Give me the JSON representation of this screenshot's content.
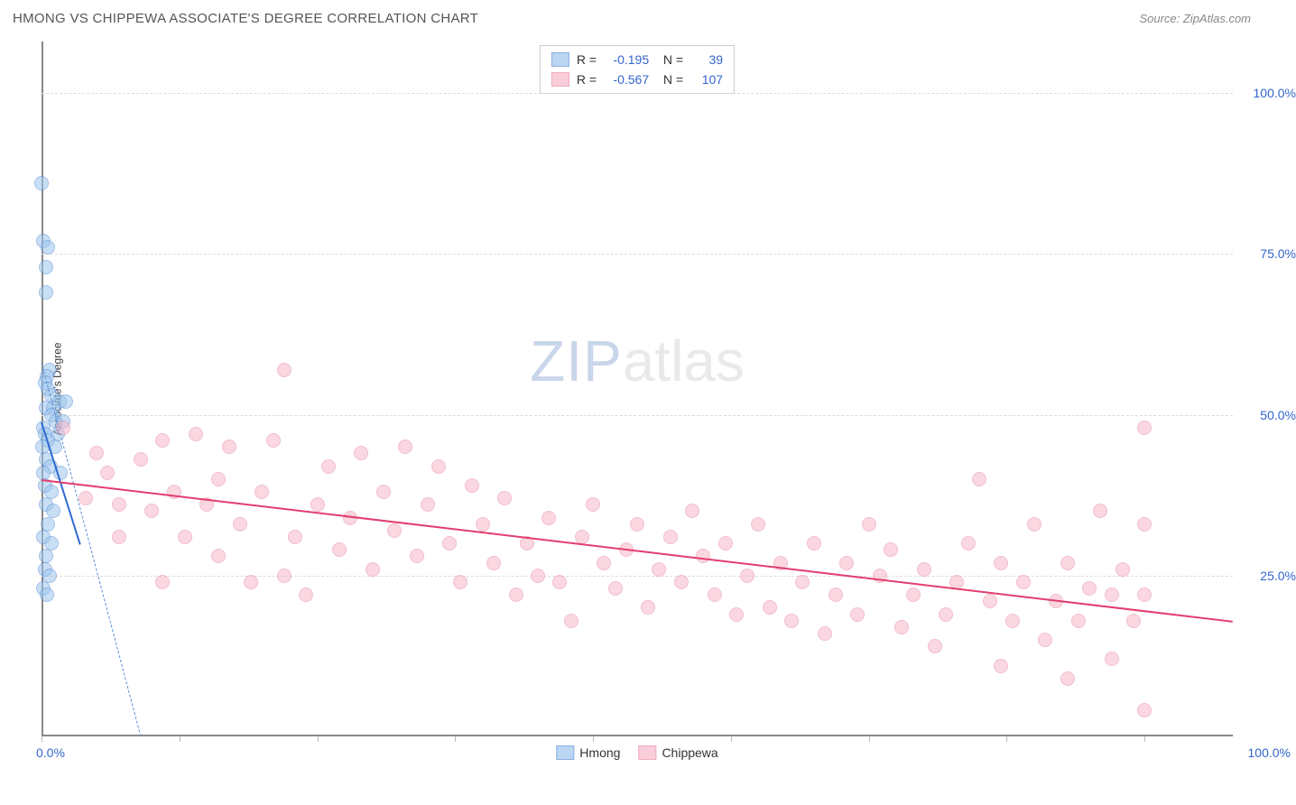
{
  "title": "HMONG VS CHIPPEWA ASSOCIATE'S DEGREE CORRELATION CHART",
  "source": "Source: ZipAtlas.com",
  "watermark": {
    "a": "ZIP",
    "b": "atlas"
  },
  "chart": {
    "type": "scatter",
    "ylabel": "Associate's Degree",
    "xlim": [
      0,
      108
    ],
    "ylim": [
      0,
      108
    ],
    "xticks": [
      0,
      12.5,
      25,
      37.5,
      50,
      62.5,
      75,
      87.5,
      100
    ],
    "yticks": [
      25,
      50,
      75,
      100
    ],
    "ytick_labels": [
      "25.0%",
      "50.0%",
      "75.0%",
      "100.0%"
    ],
    "xmin_label": "0.0%",
    "xmax_label": "100.0%",
    "grid_color": "#dcdcdc",
    "axis_color": "#888888",
    "background_color": "#ffffff",
    "series": [
      {
        "name": "Hmong",
        "fill": "#9ec6ed",
        "fill_opacity": 0.55,
        "stroke": "#5b8fd6",
        "trend_color": "#2e6ad1",
        "dash_color": "#5b8fd6",
        "R": "-0.195",
        "N": "39",
        "trend": {
          "x1": 0,
          "y1": 49,
          "x2": 3.5,
          "y2": 30
        },
        "dash_ext": {
          "x1": 0,
          "y1": 58,
          "x2": 9,
          "y2": 0
        },
        "points": [
          [
            0,
            86
          ],
          [
            0.2,
            77
          ],
          [
            0.6,
            76
          ],
          [
            0.4,
            73
          ],
          [
            0.4,
            69
          ],
          [
            0.7,
            57
          ],
          [
            0.5,
            56
          ],
          [
            0.3,
            55
          ],
          [
            0.6,
            54
          ],
          [
            0.9,
            53
          ],
          [
            1.6,
            52
          ],
          [
            2.2,
            52
          ],
          [
            0.4,
            51
          ],
          [
            1.1,
            51
          ],
          [
            0.9,
            50
          ],
          [
            0.2,
            48
          ],
          [
            1.3,
            49
          ],
          [
            2.0,
            49
          ],
          [
            0.3,
            47
          ],
          [
            1.5,
            47
          ],
          [
            0.6,
            46
          ],
          [
            0.1,
            45
          ],
          [
            1.2,
            45
          ],
          [
            0.4,
            43
          ],
          [
            0.8,
            42
          ],
          [
            0.2,
            41
          ],
          [
            1.7,
            41
          ],
          [
            0.3,
            39
          ],
          [
            0.9,
            38
          ],
          [
            0.4,
            36
          ],
          [
            1.1,
            35
          ],
          [
            0.6,
            33
          ],
          [
            0.2,
            31
          ],
          [
            0.9,
            30
          ],
          [
            0.4,
            28
          ],
          [
            0.3,
            26
          ],
          [
            0.7,
            25
          ],
          [
            0.2,
            23
          ],
          [
            0.5,
            22
          ]
        ]
      },
      {
        "name": "Chippewa",
        "fill": "#f7b8ca",
        "fill_opacity": 0.55,
        "stroke": "#e88aa6",
        "trend_color": "#e23d6d",
        "dash_color": "#e88aa6",
        "R": "-0.567",
        "N": "107",
        "trend": {
          "x1": 0,
          "y1": 40,
          "x2": 108,
          "y2": 18
        },
        "points": [
          [
            2,
            48
          ],
          [
            4,
            37
          ],
          [
            5,
            44
          ],
          [
            6,
            41
          ],
          [
            7,
            36
          ],
          [
            7,
            31
          ],
          [
            9,
            43
          ],
          [
            10,
            35
          ],
          [
            11,
            46
          ],
          [
            11,
            24
          ],
          [
            12,
            38
          ],
          [
            13,
            31
          ],
          [
            14,
            47
          ],
          [
            15,
            36
          ],
          [
            16,
            40
          ],
          [
            16,
            28
          ],
          [
            17,
            45
          ],
          [
            18,
            33
          ],
          [
            19,
            24
          ],
          [
            20,
            38
          ],
          [
            21,
            46
          ],
          [
            22,
            57
          ],
          [
            22,
            25
          ],
          [
            23,
            31
          ],
          [
            24,
            22
          ],
          [
            25,
            36
          ],
          [
            26,
            42
          ],
          [
            27,
            29
          ],
          [
            28,
            34
          ],
          [
            29,
            44
          ],
          [
            30,
            26
          ],
          [
            31,
            38
          ],
          [
            32,
            32
          ],
          [
            33,
            45
          ],
          [
            34,
            28
          ],
          [
            35,
            36
          ],
          [
            36,
            42
          ],
          [
            37,
            30
          ],
          [
            38,
            24
          ],
          [
            39,
            39
          ],
          [
            40,
            33
          ],
          [
            41,
            27
          ],
          [
            42,
            37
          ],
          [
            43,
            22
          ],
          [
            44,
            30
          ],
          [
            45,
            25
          ],
          [
            46,
            34
          ],
          [
            47,
            24
          ],
          [
            48,
            18
          ],
          [
            49,
            31
          ],
          [
            50,
            36
          ],
          [
            51,
            27
          ],
          [
            52,
            23
          ],
          [
            53,
            29
          ],
          [
            54,
            33
          ],
          [
            55,
            20
          ],
          [
            56,
            26
          ],
          [
            57,
            31
          ],
          [
            58,
            24
          ],
          [
            59,
            35
          ],
          [
            60,
            28
          ],
          [
            61,
            22
          ],
          [
            62,
            30
          ],
          [
            63,
            19
          ],
          [
            64,
            25
          ],
          [
            65,
            33
          ],
          [
            66,
            20
          ],
          [
            67,
            27
          ],
          [
            68,
            18
          ],
          [
            69,
            24
          ],
          [
            70,
            30
          ],
          [
            71,
            16
          ],
          [
            72,
            22
          ],
          [
            73,
            27
          ],
          [
            74,
            19
          ],
          [
            75,
            33
          ],
          [
            76,
            25
          ],
          [
            77,
            29
          ],
          [
            78,
            17
          ],
          [
            79,
            22
          ],
          [
            80,
            26
          ],
          [
            81,
            14
          ],
          [
            82,
            19
          ],
          [
            83,
            24
          ],
          [
            84,
            30
          ],
          [
            85,
            40
          ],
          [
            86,
            21
          ],
          [
            87,
            27
          ],
          [
            87,
            11
          ],
          [
            88,
            18
          ],
          [
            89,
            24
          ],
          [
            90,
            33
          ],
          [
            91,
            15
          ],
          [
            92,
            21
          ],
          [
            93,
            27
          ],
          [
            93,
            9
          ],
          [
            94,
            18
          ],
          [
            95,
            23
          ],
          [
            96,
            35
          ],
          [
            97,
            12
          ],
          [
            97,
            22
          ],
          [
            98,
            26
          ],
          [
            99,
            18
          ],
          [
            100,
            48
          ],
          [
            100,
            33
          ],
          [
            100,
            22
          ],
          [
            100,
            4
          ]
        ]
      }
    ]
  },
  "legend_bottom": [
    {
      "label": "Hmong",
      "fill": "#9ec6ed",
      "stroke": "#5b8fd6"
    },
    {
      "label": "Chippewa",
      "fill": "#f7b8ca",
      "stroke": "#e88aa6"
    }
  ]
}
